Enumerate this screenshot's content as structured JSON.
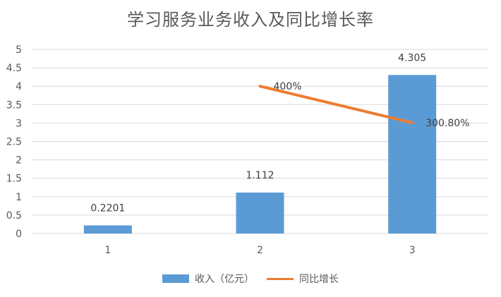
{
  "chart_data": {
    "type": "bar",
    "title": "学习服务业务收入及同比增长率",
    "xlabel": "",
    "ylabel": "",
    "categories": [
      "1",
      "2",
      "3"
    ],
    "ylim": [
      0,
      5
    ],
    "yticks": [
      "0",
      "0.5",
      "1",
      "1.5",
      "2",
      "2.5",
      "3",
      "3.5",
      "4",
      "4.5",
      "5"
    ],
    "grid": true,
    "legend_position": "bottom",
    "series": [
      {
        "name": "收入（亿元）",
        "type": "bar",
        "color": "#5b9bd5",
        "values": [
          0.2201,
          1.112,
          4.305
        ],
        "labels": [
          "0.2201",
          "1.112",
          "4.305"
        ]
      },
      {
        "name": "同比增长",
        "type": "line",
        "color": "#ed7d31",
        "values": [
          null,
          4.0,
          3.008
        ],
        "labels": [
          "",
          "400%",
          "300.80%"
        ]
      }
    ]
  }
}
